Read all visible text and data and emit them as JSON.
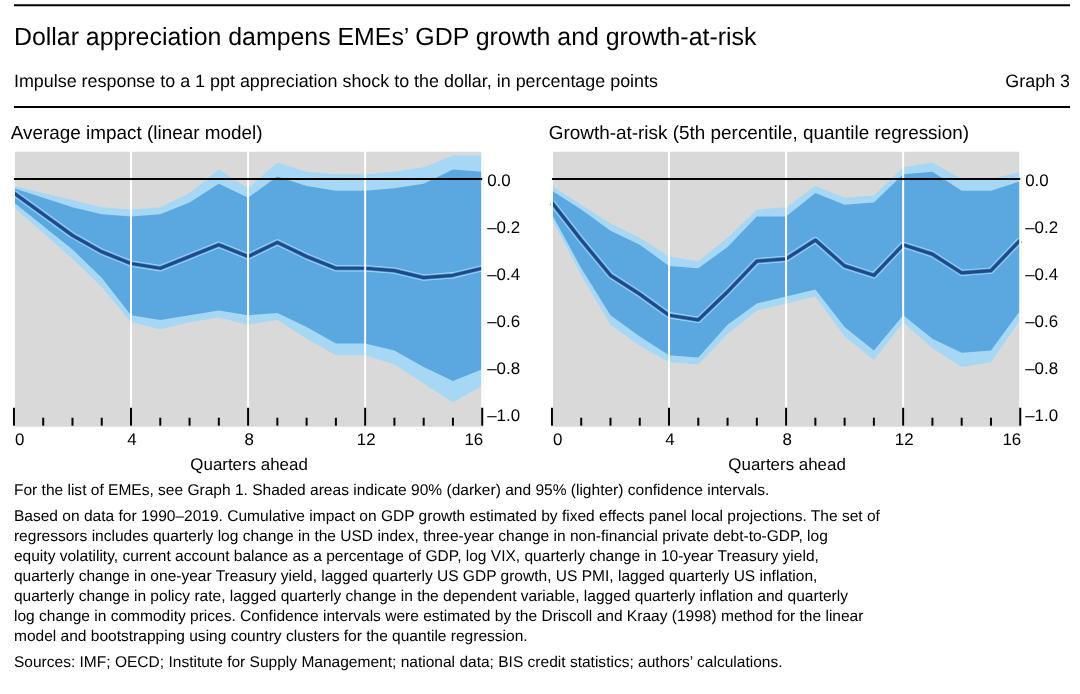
{
  "chart_data": [
    {
      "type": "other",
      "title": "Dollar appreciation dampens EMEs’ GDP growth and growth-at-risk",
      "subtitle": "Impulse response to a 1 ppt appreciation shock to the dollar, in percentage points",
      "annotations": [
        "Graph 3",
        "For the list of EMEs, see Graph 1. Shaded areas indicate 90% (darker) and 95% (lighter) confidence intervals.",
        "Based on data for 1990–2019. Cumulative impact on GDP growth estimated by fixed effects panel local projections. The set of regressors includes quarterly log change in the USD index, three-year change in non-financial private debt-to-GDP, log equity volatility, current account balance as a percentage of GDP, log VIX, quarterly change in 10-year Treasury yield, quarterly change in one-year Treasury yield, lagged quarterly US GDP growth, US PMI, lagged quarterly US inflation, quarterly change in policy rate, lagged quarterly change in the dependent variable, lagged quarterly inflation and quarterly log change in commodity prices. Confidence intervals were estimated by the Driscoll and Kraay (1998) method for the linear model and bootstrapping using country clusters for the quantile regression.",
        "Sources: IMF; OECD; Institute for Supply Management; national data; BIS credit statistics; authors’ calculations."
      ]
    },
    {
      "type": "line",
      "title": "Average impact (linear model)",
      "xlabel": "Quarters ahead",
      "x": [
        0,
        1,
        2,
        3,
        4,
        5,
        6,
        7,
        8,
        9,
        10,
        11,
        12,
        13,
        14,
        15,
        16
      ],
      "xlim": [
        0,
        16
      ],
      "xticks": [
        0,
        {
          "value": 1,
          "label": null
        },
        {
          "value": 2,
          "label": null
        },
        {
          "value": 3,
          "label": null
        },
        4,
        {
          "value": 5,
          "label": null
        },
        {
          "value": 6,
          "label": null
        },
        {
          "value": 7,
          "label": null
        },
        8,
        {
          "value": 9,
          "label": null
        },
        {
          "value": 10,
          "label": null
        },
        {
          "value": 11,
          "label": null
        },
        12,
        {
          "value": 13,
          "label": null
        },
        {
          "value": 14,
          "label": null
        },
        {
          "value": 15,
          "label": null
        },
        16
      ],
      "ylim": [
        -1.05,
        0.12
      ],
      "yticks": [
        {
          "value": 0,
          "label": "0.0"
        },
        {
          "value": -0.2,
          "label": "–0.2"
        },
        {
          "value": -0.4,
          "label": "–0.4"
        },
        {
          "value": -0.6,
          "label": "–0.6"
        },
        {
          "value": -0.8,
          "label": "–0.8"
        },
        {
          "value": -1.0,
          "label": "–1.0"
        }
      ],
      "grid": "x",
      "legend": false,
      "ref_lines": [
        {
          "axis": "y",
          "value": 0,
          "color": "#000000"
        }
      ],
      "series": [
        {
          "type": "line",
          "color": "#a6d8f5",
          "values": [
            -0.06,
            -0.15,
            -0.24,
            -0.31,
            -0.36,
            -0.38,
            -0.33,
            -0.28,
            -0.33,
            -0.27,
            -0.33,
            -0.38,
            -0.38,
            -0.39,
            -0.42,
            -0.41,
            -0.38
          ],
          "lower": [
            -0.12,
            -0.23,
            -0.34,
            -0.46,
            -0.61,
            -0.64,
            -0.61,
            -0.59,
            -0.62,
            -0.6,
            -0.68,
            -0.75,
            -0.75,
            -0.79,
            -0.87,
            -0.95,
            -0.88
          ],
          "upper": [
            -0.03,
            -0.06,
            -0.09,
            -0.12,
            -0.13,
            -0.12,
            -0.06,
            0.04,
            -0.04,
            0.07,
            0.03,
            0.02,
            0.02,
            0.03,
            0.05,
            0.1,
            0.1
          ]
        },
        {
          "type": "line",
          "color": "#5ba7df",
          "values": [
            -0.06,
            -0.15,
            -0.24,
            -0.31,
            -0.36,
            -0.38,
            -0.33,
            -0.28,
            -0.33,
            -0.27,
            -0.33,
            -0.38,
            -0.38,
            -0.39,
            -0.42,
            -0.41,
            -0.38
          ],
          "lower": [
            -0.1,
            -0.2,
            -0.3,
            -0.42,
            -0.58,
            -0.6,
            -0.58,
            -0.56,
            -0.58,
            -0.57,
            -0.63,
            -0.7,
            -0.7,
            -0.73,
            -0.8,
            -0.86,
            -0.81
          ],
          "upper": [
            -0.04,
            -0.08,
            -0.12,
            -0.15,
            -0.16,
            -0.15,
            -0.1,
            -0.02,
            -0.08,
            0.01,
            -0.03,
            -0.05,
            -0.05,
            -0.04,
            -0.02,
            0.04,
            0.03
          ]
        },
        {
          "type": "line",
          "color": "#1f4a8a",
          "values": [
            -0.06,
            -0.15,
            -0.24,
            -0.31,
            -0.36,
            -0.38,
            -0.33,
            -0.28,
            -0.33,
            -0.27,
            -0.33,
            -0.38,
            -0.38,
            -0.39,
            -0.42,
            -0.41,
            -0.38
          ]
        }
      ]
    },
    {
      "type": "line",
      "title": "Growth-at-risk (5th percentile, quantile regression)",
      "xlabel": "Quarters ahead",
      "x": [
        0,
        1,
        2,
        3,
        4,
        5,
        6,
        7,
        8,
        9,
        10,
        11,
        12,
        13,
        14,
        15,
        16
      ],
      "xlim": [
        0,
        16
      ],
      "xticks": [
        0,
        {
          "value": 1,
          "label": null
        },
        {
          "value": 2,
          "label": null
        },
        {
          "value": 3,
          "label": null
        },
        4,
        {
          "value": 5,
          "label": null
        },
        {
          "value": 6,
          "label": null
        },
        {
          "value": 7,
          "label": null
        },
        8,
        {
          "value": 9,
          "label": null
        },
        {
          "value": 10,
          "label": null
        },
        {
          "value": 11,
          "label": null
        },
        12,
        {
          "value": 13,
          "label": null
        },
        {
          "value": 14,
          "label": null
        },
        {
          "value": 15,
          "label": null
        },
        16
      ],
      "ylim": [
        -1.05,
        0.12
      ],
      "yticks": [
        {
          "value": 0,
          "label": "0.0"
        },
        {
          "value": -0.2,
          "label": "–0.2"
        },
        {
          "value": -0.4,
          "label": "–0.4"
        },
        {
          "value": -0.6,
          "label": "–0.6"
        },
        {
          "value": -0.8,
          "label": "–0.8"
        },
        {
          "value": -1.0,
          "label": "–1.0"
        }
      ],
      "grid": "x",
      "legend": false,
      "ref_lines": [
        {
          "axis": "y",
          "value": 0,
          "color": "#000000"
        }
      ],
      "series": [
        {
          "type": "line",
          "color": "#a6d8f5",
          "values": [
            -0.1,
            -0.26,
            -0.41,
            -0.49,
            -0.58,
            -0.6,
            -0.48,
            -0.35,
            -0.34,
            -0.26,
            -0.37,
            -0.41,
            -0.28,
            -0.32,
            -0.4,
            -0.39,
            -0.26
          ],
          "lower": [
            -0.17,
            -0.41,
            -0.62,
            -0.71,
            -0.78,
            -0.79,
            -0.66,
            -0.56,
            -0.53,
            -0.5,
            -0.67,
            -0.77,
            -0.61,
            -0.72,
            -0.8,
            -0.78,
            -0.6
          ],
          "upper": [
            -0.03,
            -0.11,
            -0.19,
            -0.25,
            -0.33,
            -0.35,
            -0.25,
            -0.13,
            -0.12,
            -0.03,
            -0.08,
            -0.07,
            0.05,
            0.07,
            0.0,
            0.0,
            0.03
          ]
        },
        {
          "type": "line",
          "color": "#5ba7df",
          "values": [
            -0.1,
            -0.26,
            -0.41,
            -0.49,
            -0.58,
            -0.6,
            -0.48,
            -0.35,
            -0.34,
            -0.26,
            -0.37,
            -0.41,
            -0.28,
            -0.32,
            -0.4,
            -0.39,
            -0.26
          ],
          "lower": [
            -0.15,
            -0.38,
            -0.58,
            -0.67,
            -0.75,
            -0.76,
            -0.62,
            -0.53,
            -0.5,
            -0.47,
            -0.63,
            -0.73,
            -0.58,
            -0.68,
            -0.74,
            -0.73,
            -0.56
          ],
          "upper": [
            -0.05,
            -0.13,
            -0.22,
            -0.28,
            -0.37,
            -0.38,
            -0.29,
            -0.16,
            -0.16,
            -0.06,
            -0.11,
            -0.1,
            0.02,
            0.03,
            -0.05,
            -0.05,
            -0.01
          ]
        },
        {
          "type": "line",
          "color": "#1f4a8a",
          "values": [
            -0.1,
            -0.26,
            -0.41,
            -0.49,
            -0.58,
            -0.6,
            -0.48,
            -0.35,
            -0.34,
            -0.26,
            -0.37,
            -0.41,
            -0.28,
            -0.32,
            -0.4,
            -0.39,
            -0.26
          ]
        }
      ]
    }
  ]
}
